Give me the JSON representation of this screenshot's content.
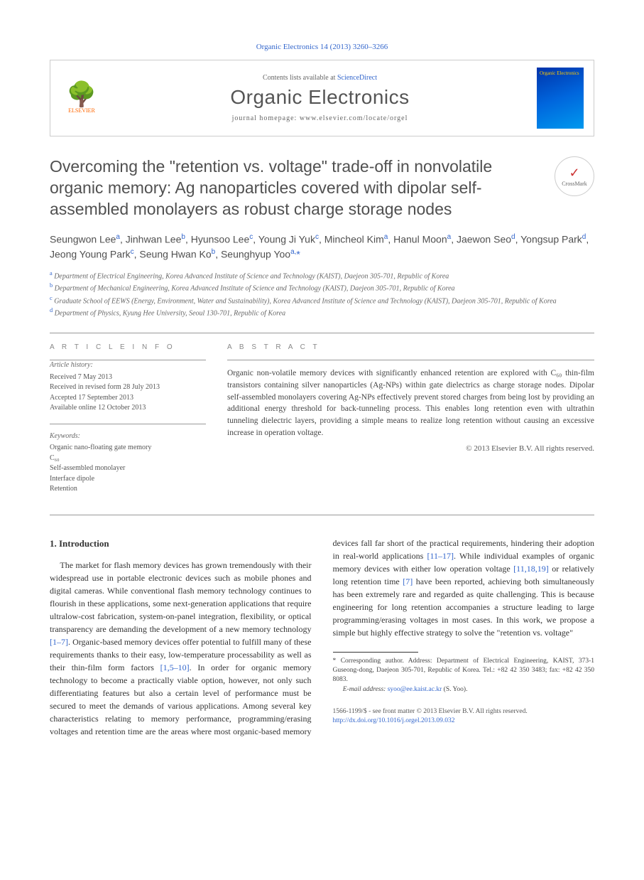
{
  "citation": "Organic Electronics 14 (2013) 3260–3266",
  "header": {
    "contents_prefix": "Contents lists available at ",
    "contents_link": "ScienceDirect",
    "journal": "Organic Electronics",
    "homepage_label": "journal homepage: ",
    "homepage_url": "www.elsevier.com/locate/orgel",
    "publisher": "ELSEVIER",
    "cover_text": "Organic Electronics"
  },
  "crossmark": "CrossMark",
  "title": "Overcoming the \"retention vs. voltage\" trade-off in nonvolatile organic memory: Ag nanoparticles covered with dipolar self-assembled monolayers as robust charge storage nodes",
  "authors_html": "Seungwon Lee<sup>a</sup>, Jinhwan Lee<sup>b</sup>, Hyunsoo Lee<sup>c</sup>, Young Ji Yuk<sup>c</sup>, Mincheol Kim<sup>a</sup>, Hanul Moon<sup>a</sup>, Jaewon Seo<sup>d</sup>, Yongsup Park<sup>d</sup>, Jeong Young Park<sup>c</sup>, Seung Hwan Ko<sup>b</sup>, Seunghyup Yoo<sup>a,</sup><span class='corr'>*</span>",
  "affiliations": [
    {
      "sup": "a",
      "text": "Department of Electrical Engineering, Korea Advanced Institute of Science and Technology (KAIST), Daejeon 305-701, Republic of Korea"
    },
    {
      "sup": "b",
      "text": "Department of Mechanical Engineering, Korea Advanced Institute of Science and Technology (KAIST), Daejeon 305-701, Republic of Korea"
    },
    {
      "sup": "c",
      "text": "Graduate School of EEWS (Energy, Environment, Water and Sustainability), Korea Advanced Institute of Science and Technology (KAIST), Daejeon 305-701, Republic of Korea"
    },
    {
      "sup": "d",
      "text": "Department of Physics, Kyung Hee University, Seoul 130-701, Republic of Korea"
    }
  ],
  "article_info": {
    "heading": "A R T I C L E   I N F O",
    "history_label": "Article history:",
    "history_lines": [
      "Received 7 May 2013",
      "Received in revised form 28 July 2013",
      "Accepted 17 September 2013",
      "Available online 12 October 2013"
    ],
    "keywords_label": "Keywords:",
    "keywords": [
      "Organic nano-floating gate memory",
      "C₆₀",
      "Self-assembled monolayer",
      "Interface dipole",
      "Retention"
    ]
  },
  "abstract": {
    "heading": "A B S T R A C T",
    "text": "Organic non-volatile memory devices with significantly enhanced retention are explored with C₆₀ thin-film transistors containing silver nanoparticles (Ag-NPs) within gate dielectrics as charge storage nodes. Dipolar self-assembled monolayers covering Ag-NPs effectively prevent stored charges from being lost by providing an additional energy threshold for back-tunneling process. This enables long retention even with ultrathin tunneling dielectric layers, providing a simple means to realize long retention without causing an excessive increase in operation voltage.",
    "copyright": "© 2013 Elsevier B.V. All rights reserved."
  },
  "section1": {
    "heading": "1. Introduction",
    "para1_pre": "The market for flash memory devices has grown tremendously with their widespread use in portable electronic devices such as mobile phones and digital cameras. While conventional flash memory technology continues to flourish in these applications, some next-generation applications that require ultralow-cost fabrication, system-on-panel integration, flexibility, or optical transparency are demanding the development of a new memory technology ",
    "cite1": "[1–7]",
    "para1_mid": ". Organic-based memory devices offer potential to fulfill many of these requirements thanks to their easy, low-temperature processability as well as their thin-film",
    "para2a": " form factors ",
    "cite2": "[1,5–10]",
    "para2b": ". In order for organic memory technology to become a practically viable option, however, not only such differentiating features but also a certain level of performance must be secured to meet the demands of various applications. Among several key characteristics relating to memory performance, programming/erasing voltages and retention time are the areas where most organic-based memory devices fall far short of the practical requirements, hindering their adoption in real-world applications ",
    "cite3": "[11–17]",
    "para2c": ". While individual examples of organic memory devices with either low operation voltage ",
    "cite4": "[11,18,19]",
    "para2d": " or relatively long retention time ",
    "cite5": "[7]",
    "para2e": " have been reported, achieving both simultaneously has been extremely rare and regarded as quite challenging. This is because engineering for long retention accompanies a structure leading to large programming/erasing voltages in most cases. In this work, we propose a simple but highly effective strategy to solve the \"retention vs. voltage\""
  },
  "footnotes": {
    "corr_marker": "*",
    "corr_text": " Corresponding author. Address: Department of Electrical Engineering, KAIST, 373-1 Guseong-dong, Daejeon 305-701, Republic of Korea. Tel.: +82 42 350 3483; fax: +82 42 350 8083.",
    "email_label": "E-mail address: ",
    "email": "syoo@ee.kaist.ac.kr",
    "email_suffix": " (S. Yoo)."
  },
  "bottom": {
    "issn": "1566-1199/$ - see front matter © 2013 Elsevier B.V. All rights reserved.",
    "doi": "http://dx.doi.org/10.1016/j.orgel.2013.09.032"
  },
  "colors": {
    "link": "#3366cc",
    "elsevier_orange": "#ff6600",
    "text_body": "#333333",
    "text_muted": "#666666",
    "rule": "#999999"
  }
}
